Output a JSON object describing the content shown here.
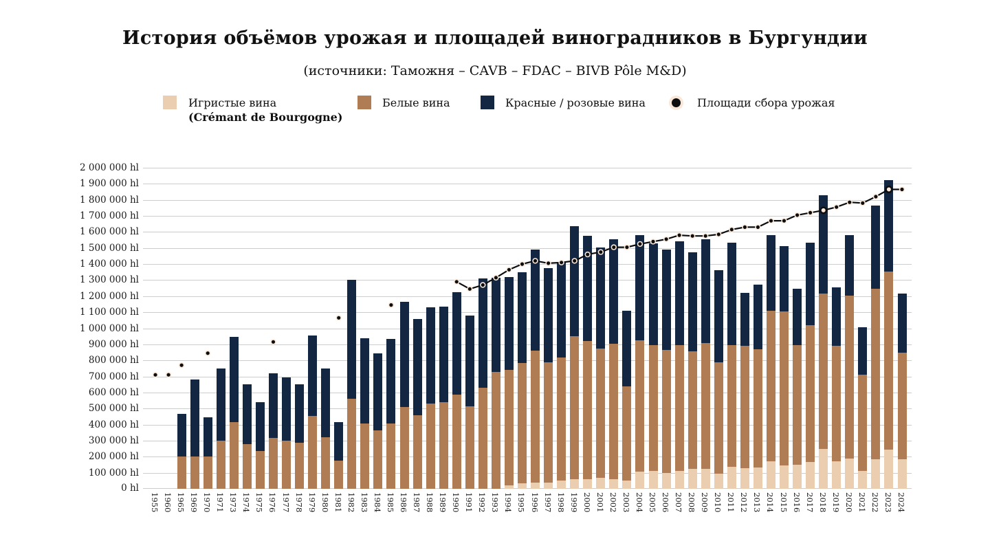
{
  "title": "История объёмов урожая и площадей виноградников в Бургундии",
  "subtitle": "(источники: Таможня – CAVB – FDAC – BIVB Pôle M&D)",
  "legend": {
    "sparkling_label": "Игристые вина",
    "sparkling_label2": "(Crémant de Bourgogne)",
    "white_label": "Белые вина",
    "red_label": "Красные / розовые вина",
    "area_label": "Площади сбора урожая"
  },
  "colors": {
    "sparkling": "#ebceb0",
    "white": "#b07c54",
    "red": "#132743",
    "dot": "#0d0d0d",
    "dot_halo": "#f9e8d9",
    "grid": "#cccccc"
  },
  "chart_data": {
    "type": "bar",
    "subtype": "stacked-bars-with-dot-line",
    "unit": "hl",
    "ylim": [
      0,
      2000000
    ],
    "ytick_step": 100000,
    "grid": "horizontal",
    "legend_position": "top",
    "y_tick_labels": [
      "2 000 000 hl",
      "1 900 000 hl",
      "1 800 000 hl",
      "1 700 000 hl",
      "1 600 000 hl",
      "1 500 000 hl",
      "1 400 000 hl",
      "1 300 000 hl",
      "1 200 000 hl",
      "1 100 000 hl",
      "1 000 000 hl",
      "900 000 hl",
      "800 000 hl",
      "700 000 hl",
      "600 000 hl",
      "500 000 hl",
      "400 000 hl",
      "300 000 hl",
      "200 000 hl",
      "100 000 hl",
      "0 hl"
    ],
    "categories": [
      "1955",
      "1960",
      "1965",
      "1969",
      "1970",
      "1971",
      "1973",
      "1974",
      "1975",
      "1976",
      "1977",
      "1978",
      "1979",
      "1980",
      "1981",
      "1982",
      "1983",
      "1984",
      "1985",
      "1986",
      "1987",
      "1988",
      "1989",
      "1990",
      "1991",
      "1992",
      "1993",
      "1994",
      "1995",
      "1996",
      "1997",
      "1998",
      "1999",
      "2000",
      "2001",
      "2002",
      "2003",
      "2004",
      "2005",
      "2006",
      "2007",
      "2008",
      "2009",
      "2010",
      "2011",
      "2012",
      "2013",
      "2014",
      "2015",
      "2016",
      "2017",
      "2018",
      "2019",
      "2020",
      "2021",
      "2022",
      "2023",
      "2024"
    ],
    "series": [
      {
        "name": "Игристые вина (Crémant de Bourgogne)",
        "values": [
          null,
          null,
          0,
          0,
          0,
          0,
          0,
          0,
          0,
          0,
          0,
          0,
          0,
          0,
          0,
          0,
          0,
          0,
          0,
          0,
          0,
          0,
          0,
          0,
          0,
          0,
          0,
          20000,
          35000,
          40000,
          40000,
          50000,
          60000,
          60000,
          70000,
          60000,
          50000,
          105000,
          110000,
          100000,
          113000,
          125000,
          123000,
          95000,
          137000,
          128000,
          133000,
          170000,
          145000,
          150000,
          165000,
          250000,
          170000,
          190000,
          110000,
          185000,
          245000,
          185000
        ]
      },
      {
        "name": "Белые вина",
        "values": [
          null,
          null,
          200000,
          200000,
          200000,
          300000,
          415000,
          280000,
          235000,
          315000,
          300000,
          285000,
          455000,
          320000,
          175000,
          560000,
          405000,
          365000,
          405000,
          510000,
          460000,
          530000,
          540000,
          585000,
          515000,
          630000,
          730000,
          720000,
          750000,
          820000,
          750000,
          770000,
          890000,
          860000,
          805000,
          845000,
          590000,
          820000,
          785000,
          765000,
          782000,
          730000,
          787000,
          695000,
          758000,
          762000,
          737000,
          940000,
          960000,
          745000,
          855000,
          965000,
          720000,
          1015000,
          600000,
          1060000,
          1110000,
          665000
        ]
      },
      {
        "name": "Красные / розовые вина",
        "values": [
          null,
          null,
          265000,
          480000,
          245000,
          450000,
          530000,
          370000,
          305000,
          405000,
          395000,
          365000,
          500000,
          430000,
          240000,
          740000,
          535000,
          480000,
          530000,
          655000,
          600000,
          600000,
          595000,
          640000,
          565000,
          680000,
          585000,
          580000,
          565000,
          630000,
          585000,
          590000,
          685000,
          655000,
          630000,
          650000,
          470000,
          655000,
          635000,
          625000,
          645000,
          620000,
          645000,
          570000,
          640000,
          330000,
          400000,
          470000,
          405000,
          350000,
          515000,
          615000,
          365000,
          375000,
          295000,
          520000,
          570000,
          365000
        ]
      }
    ],
    "line_series": {
      "name": "Площади сбора урожая",
      "values": [
        710000,
        710000,
        770000,
        null,
        845000,
        null,
        null,
        null,
        null,
        915000,
        null,
        null,
        null,
        null,
        1065000,
        null,
        null,
        null,
        1145000,
        null,
        null,
        null,
        null,
        1290000,
        1245000,
        1270000,
        1315000,
        1365000,
        1400000,
        1420000,
        1405000,
        1410000,
        1420000,
        1460000,
        1475000,
        1505000,
        1505000,
        1525000,
        1540000,
        1555000,
        1580000,
        1575000,
        1575000,
        1585000,
        1615000,
        1630000,
        1630000,
        1670000,
        1670000,
        1705000,
        1720000,
        1735000,
        1755000,
        1785000,
        1780000,
        1820000,
        1865000,
        1865000
      ],
      "connected_from": "1990",
      "open_markers": [
        "2018",
        "2023"
      ]
    }
  }
}
